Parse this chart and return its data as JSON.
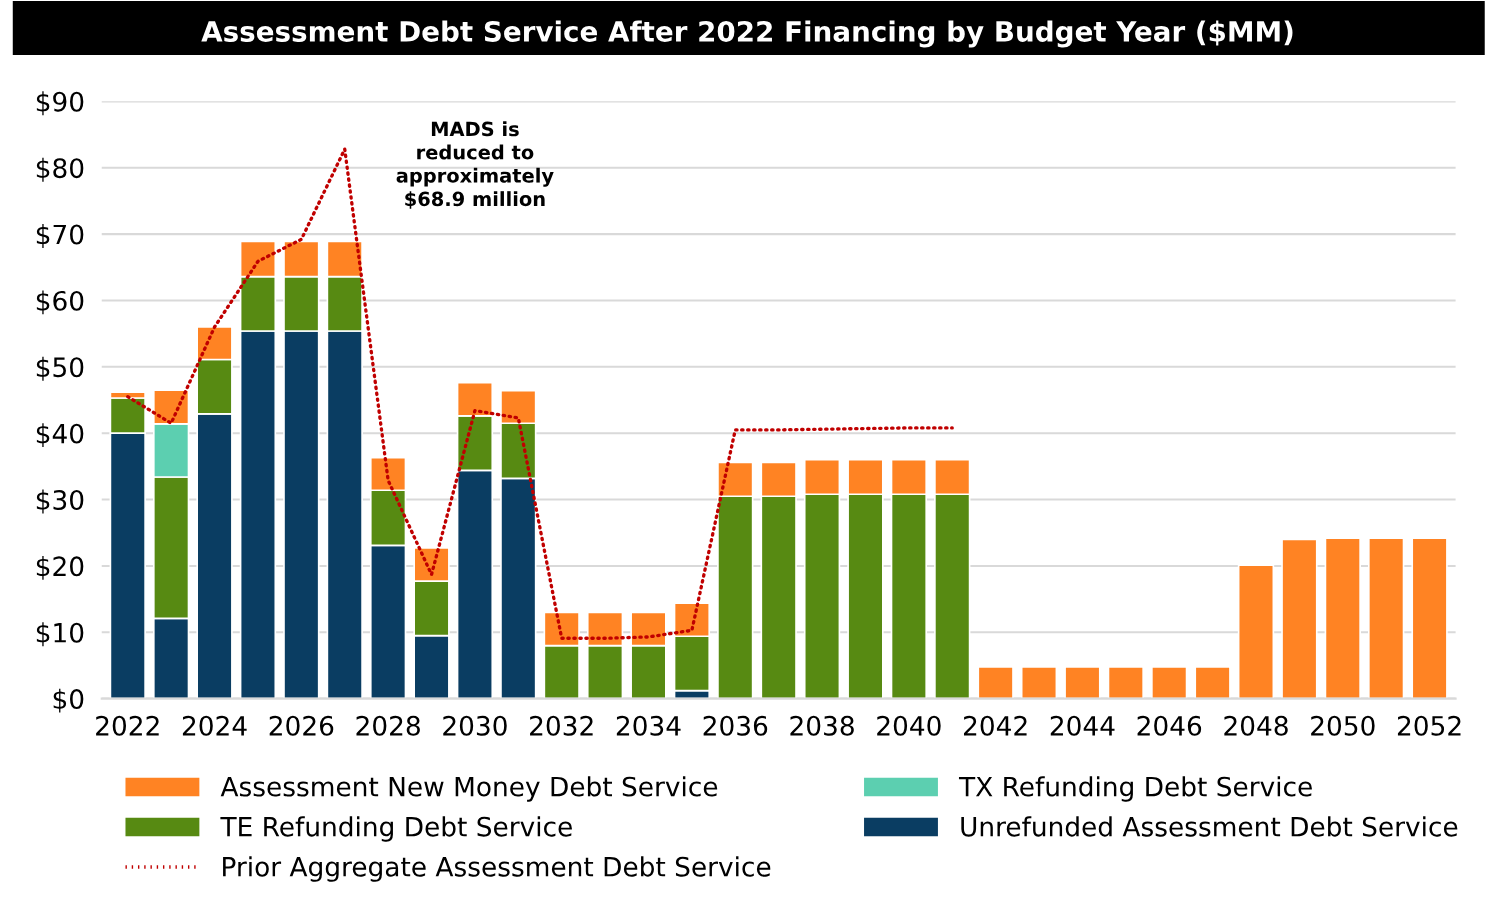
{
  "chart_data": {
    "type": "bar",
    "stacked": true,
    "title": "Assessment Debt Service After 2022 Financing by Budget Year ($MM)",
    "categories": [
      "2022",
      null,
      "2024",
      null,
      "2026",
      null,
      "2028",
      null,
      "2030",
      null,
      "2032",
      null,
      "2034",
      null,
      "2036",
      null,
      "2038",
      null,
      "2040",
      null,
      "2042",
      null,
      "2044",
      null,
      "2046",
      null,
      "2048",
      null,
      "2050",
      null,
      "2052"
    ],
    "series": [
      {
        "name": "Unrefunded Assessment Debt Service",
        "color": "#0a3d62",
        "values": [
          40.0,
          12.1,
          42.9,
          55.4,
          55.4,
          55.4,
          23.1,
          9.5,
          34.4,
          33.2,
          null,
          null,
          null,
          1.2,
          null,
          null,
          null,
          null,
          null,
          null,
          null,
          null,
          null,
          null,
          null,
          null,
          null,
          null,
          null,
          null,
          null
        ]
      },
      {
        "name": "TE Refunding Debt Service",
        "color": "#578a12",
        "values": [
          5.3,
          21.3,
          8.2,
          8.2,
          8.2,
          8.2,
          8.3,
          8.2,
          8.2,
          8.3,
          8.0,
          8.0,
          8.0,
          8.2,
          30.5,
          30.5,
          30.8,
          30.8,
          30.8,
          30.8,
          null,
          null,
          null,
          null,
          null,
          null,
          null,
          null,
          null,
          null,
          null
        ]
      },
      {
        "name": "TX Refunding Debt Service",
        "color": "#5ccfb0",
        "values": [
          null,
          8.0,
          null,
          null,
          null,
          null,
          null,
          null,
          null,
          null,
          null,
          null,
          null,
          null,
          null,
          null,
          null,
          null,
          null,
          null,
          null,
          null,
          null,
          null,
          null,
          null,
          null,
          null,
          null,
          null,
          null
        ]
      },
      {
        "name": "Assessment New Money Debt Service",
        "color": "#ff8323",
        "values": [
          0.9,
          5.1,
          4.9,
          5.3,
          5.3,
          5.3,
          4.9,
          5.0,
          5.0,
          4.9,
          5.0,
          5.0,
          5.0,
          5.0,
          5.1,
          5.1,
          5.2,
          5.2,
          5.2,
          5.2,
          4.8,
          4.8,
          4.8,
          4.8,
          4.8,
          4.8,
          20.1,
          24.0,
          24.2,
          24.2,
          24.2
        ]
      },
      {
        "name": "Prior Aggregate Assessment Debt Service",
        "type": "line",
        "color": "#c00000",
        "line_style": "dotted",
        "values": [
          45.5,
          41.5,
          56.0,
          65.9,
          69.2,
          82.8,
          32.9,
          18.7,
          43.4,
          42.3,
          9.1,
          9.1,
          9.3,
          10.3,
          40.5,
          40.5,
          40.6,
          40.7,
          40.8,
          40.8,
          null,
          null,
          null,
          null,
          null,
          null,
          null,
          null,
          null,
          null,
          null
        ]
      }
    ],
    "ylim": [
      0,
      90
    ],
    "yticks": [
      {
        "value": 0,
        "label": "$0"
      },
      {
        "value": 10,
        "label": "$10"
      },
      {
        "value": 20,
        "label": "$20"
      },
      {
        "value": 30,
        "label": "$30"
      },
      {
        "value": 40,
        "label": "$40"
      },
      {
        "value": 50,
        "label": "$50"
      },
      {
        "value": 60,
        "label": "$60"
      },
      {
        "value": 70,
        "label": "$70"
      },
      {
        "value": 80,
        "label": "$80"
      },
      {
        "value": 90,
        "label": "$90"
      }
    ],
    "grid": "y",
    "legend": "bottom",
    "annotations": [
      "MADS is\nreduced to\napproximately\n$68.9 million"
    ]
  }
}
